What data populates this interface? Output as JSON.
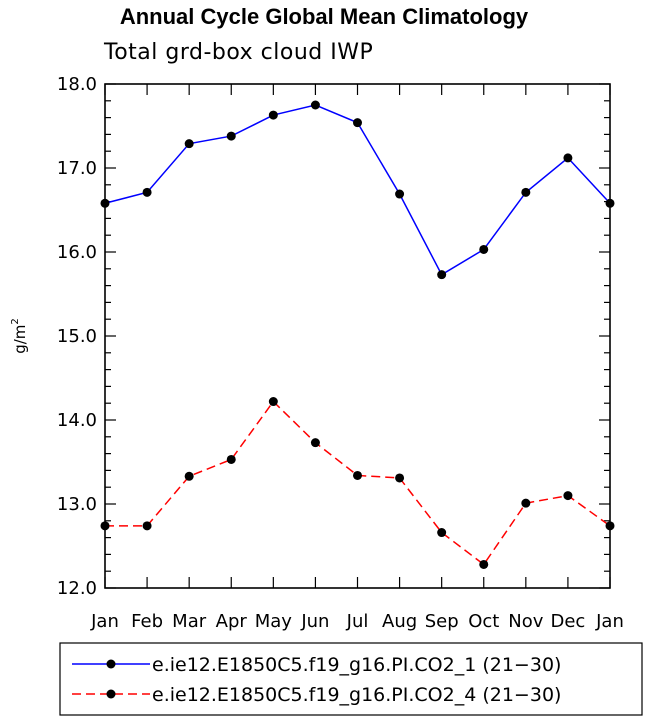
{
  "chart_data": {
    "type": "line",
    "title": "Annual Cycle Global Mean Climatology",
    "subtitle": "Total grd-box cloud IWP",
    "ylabel": "g/m",
    "ylabel_sup": "2",
    "xlabel": "",
    "categories": [
      "Jan",
      "Feb",
      "Mar",
      "Apr",
      "May",
      "Jun",
      "Jul",
      "Aug",
      "Sep",
      "Oct",
      "Nov",
      "Dec",
      "Jan"
    ],
    "ylim": [
      12.0,
      18.0
    ],
    "yticks": [
      "12.0",
      "13.0",
      "14.0",
      "15.0",
      "16.0",
      "17.0",
      "18.0"
    ],
    "grid": false,
    "legend_position": "bottom",
    "series": [
      {
        "name": "e.ie12.E1850C5.f19_g16.PI.CO2_1 (21−30)",
        "color": "#0000ff",
        "dash": "solid",
        "values": [
          16.58,
          16.71,
          17.29,
          17.38,
          17.63,
          17.75,
          17.54,
          16.69,
          15.73,
          16.03,
          16.71,
          17.12,
          16.58
        ]
      },
      {
        "name": "e.ie12.E1850C5.f19_g16.PI.CO2_4 (21−30)",
        "color": "#ff0000",
        "dash": "dashed",
        "values": [
          12.74,
          12.74,
          13.33,
          13.53,
          14.22,
          13.73,
          13.34,
          13.31,
          12.66,
          12.28,
          13.01,
          13.1,
          12.74
        ]
      }
    ]
  }
}
